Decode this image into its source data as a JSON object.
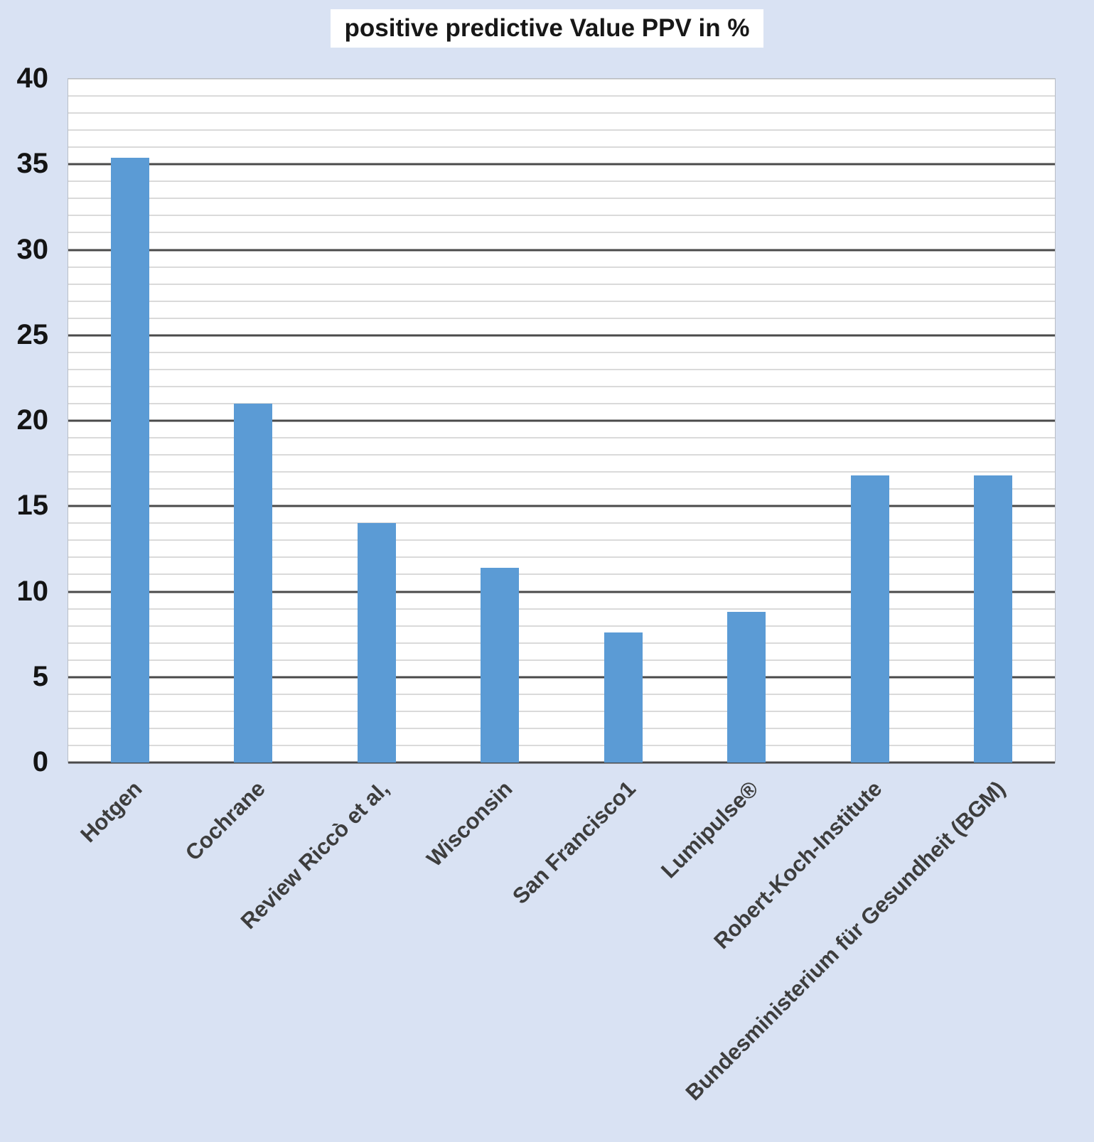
{
  "title": "positive predictive Value PPV in %",
  "chart_data": {
    "type": "bar",
    "title": "positive predictive Value PPV in %",
    "categories": [
      "Hotgen",
      "Cochrane",
      "Review Riccò et al,",
      "Wisconsin",
      "San Francisco1",
      "Lumipulse®",
      "Robert-Koch-Institute",
      "Bundesministerium für Gesundheit (BGM)"
    ],
    "values": [
      35.4,
      21,
      14,
      11.4,
      7.6,
      8.8,
      16.8,
      16.8
    ],
    "xlabel": "",
    "ylabel": "",
    "ylim": [
      0,
      40
    ],
    "yticks": [
      0,
      5,
      10,
      15,
      20,
      25,
      30,
      35,
      40
    ],
    "ytick_step_major": 5,
    "ytick_step_minor": 1,
    "grid": "on",
    "legend": "none",
    "bar_color": "#5b9bd5",
    "background_color": "#d9e2f3",
    "plot_background_color": "#ffffff",
    "grid_major_color": "#4a4a4a",
    "grid_minor_color": "#b5b5b5"
  }
}
